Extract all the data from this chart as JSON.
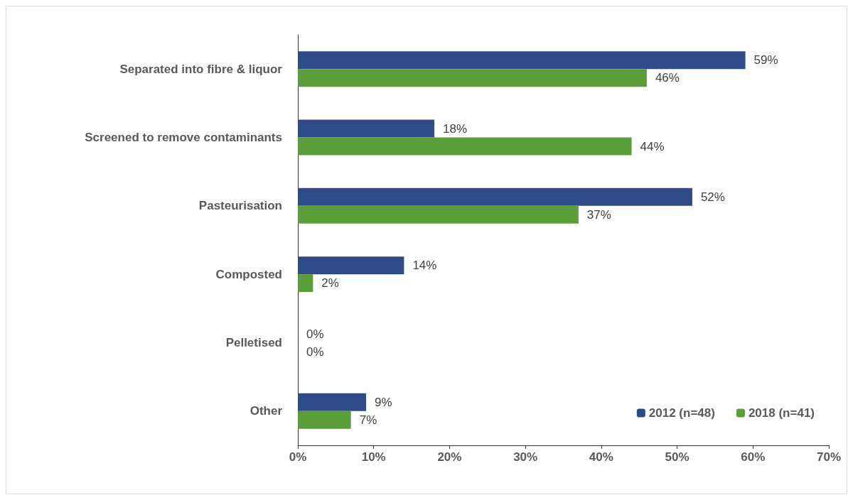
{
  "chart_data": {
    "type": "bar",
    "orientation": "horizontal",
    "categories": [
      "Separated into fibre & liquor",
      "Screened to remove contaminants",
      "Pasteurisation",
      "Composted",
      "Pelletised",
      "Other"
    ],
    "series": [
      {
        "name": "2012 (n=48)",
        "color": "#2e4a87",
        "values": [
          59,
          18,
          52,
          14,
          0,
          9
        ],
        "value_labels": [
          "59%",
          "18%",
          "52%",
          "14%",
          "0%",
          "9%"
        ]
      },
      {
        "name": "2018 (n=41)",
        "color": "#5a9e3a",
        "values": [
          46,
          44,
          37,
          2,
          0,
          7
        ],
        "value_labels": [
          "46%",
          "44%",
          "37%",
          "2%",
          "0%",
          "7%"
        ]
      }
    ],
    "xlim": [
      0,
      70
    ],
    "xticks": [
      {
        "value": 0,
        "label": "0%"
      },
      {
        "value": 10,
        "label": "10%"
      },
      {
        "value": 20,
        "label": "20%"
      },
      {
        "value": 30,
        "label": "30%"
      },
      {
        "value": 40,
        "label": "40%"
      },
      {
        "value": 50,
        "label": "50%"
      },
      {
        "value": 60,
        "label": "60%"
      },
      {
        "value": 70,
        "label": "70%"
      }
    ],
    "legend": "bottom right",
    "grid": false
  }
}
